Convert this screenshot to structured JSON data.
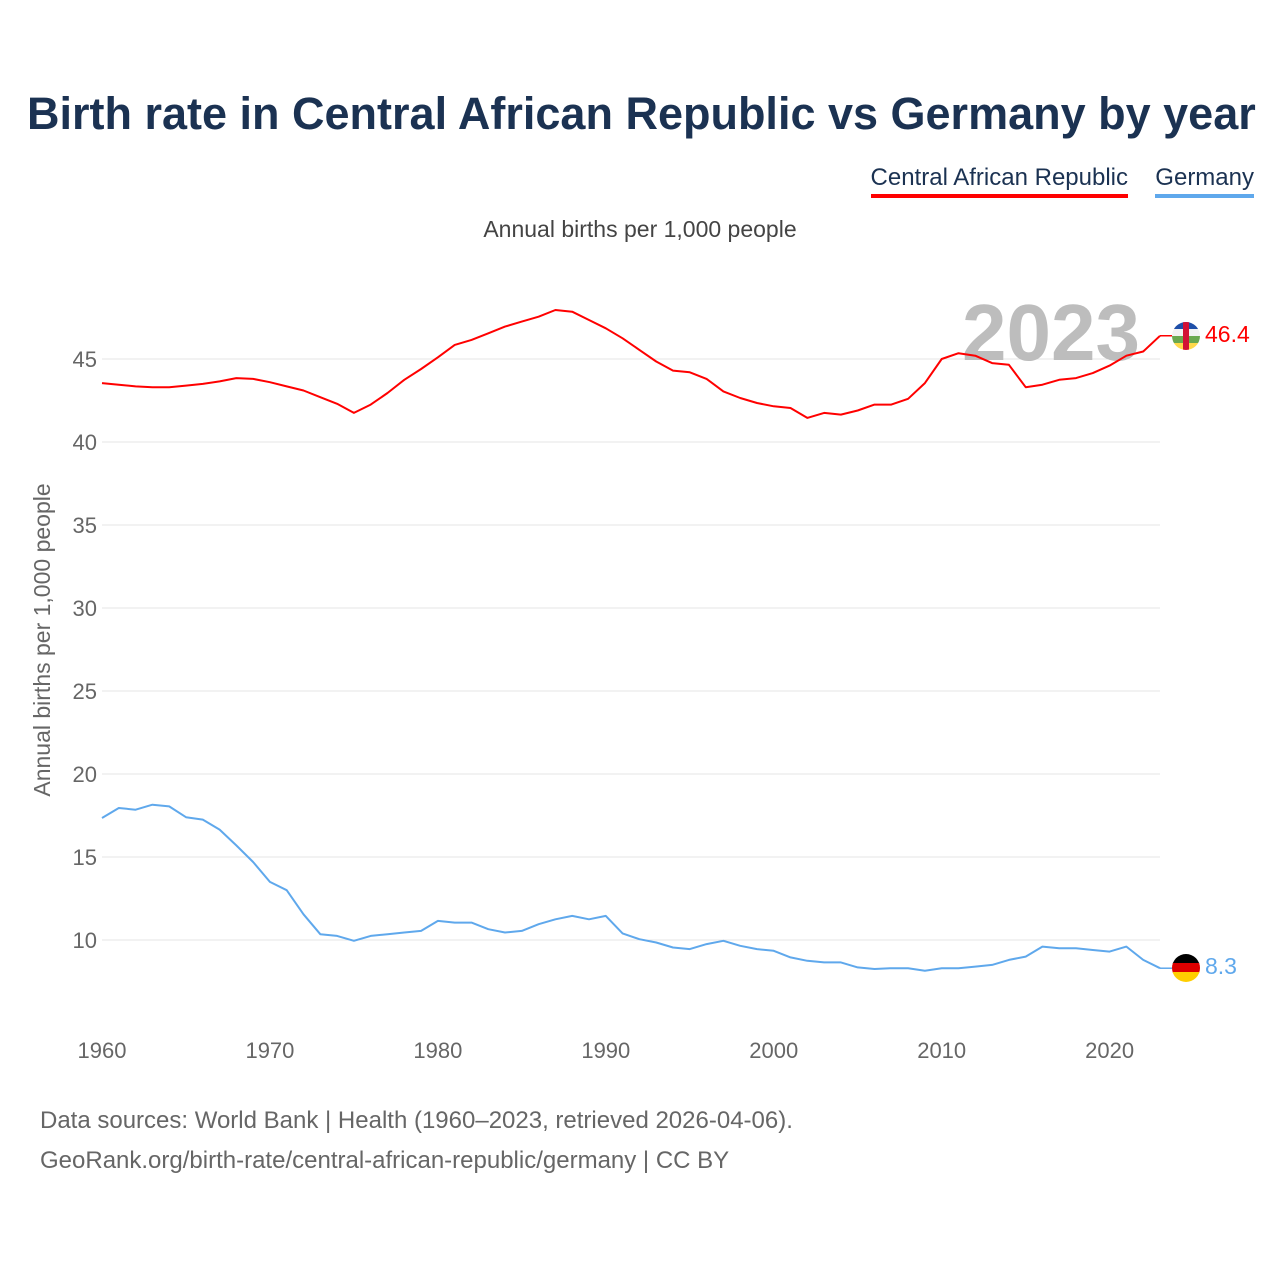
{
  "title": "Birth rate in Central African Republic vs Germany by year",
  "legend": [
    "Central African Republic",
    "Germany"
  ],
  "subtitle": "Annual births per 1,000 people",
  "year_watermark": "2023",
  "footer": {
    "line1": "Data sources: World Bank | Health (1960–2023, retrieved 2026-04-06).",
    "line2": "GeoRank.org/birth-rate/central-african-republic/germany | CC BY"
  },
  "chart_data": {
    "type": "line",
    "title": "Birth rate in Central African Republic vs Germany by year",
    "xlabel": "",
    "ylabel": "Annual births per 1,000 people",
    "xlim": [
      1960,
      2023
    ],
    "ylim": [
      5.5,
      48.5
    ],
    "xticks": [
      "1960",
      "1970",
      "1980",
      "1990",
      "2000",
      "2010",
      "2020"
    ],
    "yticks": [
      "10",
      "15",
      "20",
      "25",
      "30",
      "35",
      "40",
      "45"
    ],
    "grid": true,
    "legend_position": "top-right",
    "x": [
      1960,
      1961,
      1962,
      1963,
      1964,
      1965,
      1966,
      1967,
      1968,
      1969,
      1970,
      1971,
      1972,
      1973,
      1974,
      1975,
      1976,
      1977,
      1978,
      1979,
      1980,
      1981,
      1982,
      1983,
      1984,
      1985,
      1986,
      1987,
      1988,
      1989,
      1990,
      1991,
      1992,
      1993,
      1994,
      1995,
      1996,
      1997,
      1998,
      1999,
      2000,
      2001,
      2002,
      2003,
      2004,
      2005,
      2006,
      2007,
      2008,
      2009,
      2010,
      2011,
      2012,
      2013,
      2014,
      2015,
      2016,
      2017,
      2018,
      2019,
      2020,
      2021,
      2022,
      2023
    ],
    "series": [
      {
        "name": "Central African Republic",
        "color": "#ff0000",
        "end_label": "46.4",
        "values": [
          43.55,
          43.45,
          43.35,
          43.3,
          43.3,
          43.4,
          43.5,
          43.65,
          43.85,
          43.8,
          43.6,
          43.35,
          43.1,
          42.7,
          42.3,
          41.75,
          42.25,
          42.95,
          43.75,
          44.4,
          45.1,
          45.85,
          46.15,
          46.55,
          46.95,
          47.25,
          47.55,
          47.95,
          47.85,
          47.35,
          46.85,
          46.25,
          45.55,
          44.85,
          44.3,
          44.2,
          43.8,
          43.05,
          42.65,
          42.35,
          42.15,
          42.05,
          41.45,
          41.75,
          41.65,
          41.9,
          42.25,
          42.25,
          42.6,
          43.55,
          45.0,
          45.35,
          45.2,
          44.75,
          44.65,
          43.3,
          43.45,
          43.75,
          43.85,
          44.15,
          44.6,
          45.2,
          45.45,
          46.4
        ]
      },
      {
        "name": "Germany",
        "color": "#5fa8ec",
        "end_label": "8.3",
        "values": [
          17.35,
          17.95,
          17.85,
          18.15,
          18.05,
          17.4,
          17.25,
          16.65,
          15.7,
          14.7,
          13.5,
          13.0,
          11.55,
          10.35,
          10.25,
          9.95,
          10.25,
          10.35,
          10.45,
          10.55,
          11.15,
          11.05,
          11.05,
          10.65,
          10.45,
          10.55,
          10.95,
          11.25,
          11.45,
          11.25,
          11.45,
          10.4,
          10.05,
          9.85,
          9.55,
          9.45,
          9.75,
          9.95,
          9.65,
          9.45,
          9.35,
          8.95,
          8.75,
          8.65,
          8.65,
          8.35,
          8.25,
          8.3,
          8.3,
          8.15,
          8.3,
          8.3,
          8.4,
          8.5,
          8.8,
          9.0,
          9.6,
          9.5,
          9.5,
          9.4,
          9.3,
          9.6,
          8.8,
          8.3
        ]
      }
    ]
  }
}
